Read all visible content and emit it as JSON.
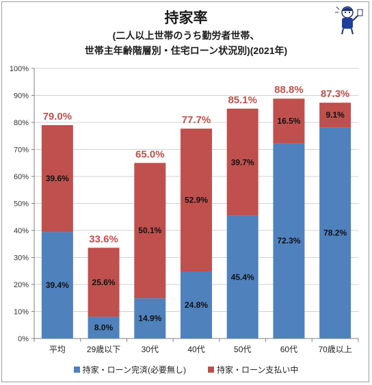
{
  "header": {
    "title": "持家率",
    "subtitle_line1": "(二人以上世帯のうち勤労者世帯、",
    "subtitle_line2": "世帯主年齢階層別・住宅ローン状況別)(2021年)"
  },
  "colors": {
    "completed": "#4f81bd",
    "paying": "#c0504d",
    "total_label": "#c0504d",
    "grid": "#d0d0d0",
    "axis": "#808080"
  },
  "chart_data": {
    "type": "bar",
    "stacked": true,
    "categories": [
      "平均",
      "29歳以下",
      "30代",
      "40代",
      "50代",
      "60代",
      "70歳以上"
    ],
    "series": [
      {
        "name": "持家・ローン完済(必要無し)",
        "values": [
          39.4,
          8.0,
          14.9,
          24.8,
          45.4,
          72.3,
          78.2
        ],
        "labels": [
          "39.4%",
          "8.0%",
          "14.9%",
          "24.8%",
          "45.4%",
          "72.3%",
          "78.2%"
        ]
      },
      {
        "name": "持家・ローン支払い中",
        "values": [
          39.6,
          25.6,
          50.1,
          52.9,
          39.7,
          16.5,
          9.1
        ],
        "labels": [
          "39.6%",
          "25.6%",
          "50.1%",
          "52.9%",
          "39.7%",
          "16.5%",
          "9.1%"
        ]
      }
    ],
    "totals": [
      79.0,
      33.6,
      65.0,
      77.7,
      85.1,
      88.8,
      87.3
    ],
    "total_labels": [
      "79.0%",
      "33.6%",
      "65.0%",
      "77.7%",
      "85.1%",
      "88.8%",
      "87.3%"
    ],
    "ylim": [
      0,
      100
    ],
    "yticks": [
      0,
      10,
      20,
      30,
      40,
      50,
      60,
      70,
      80,
      90,
      100
    ],
    "ytick_labels": [
      "0%",
      "10%",
      "20%",
      "30%",
      "40%",
      "50%",
      "60%",
      "70%",
      "80%",
      "90%",
      "100%"
    ],
    "grid": true,
    "legend_position": "bottom"
  }
}
